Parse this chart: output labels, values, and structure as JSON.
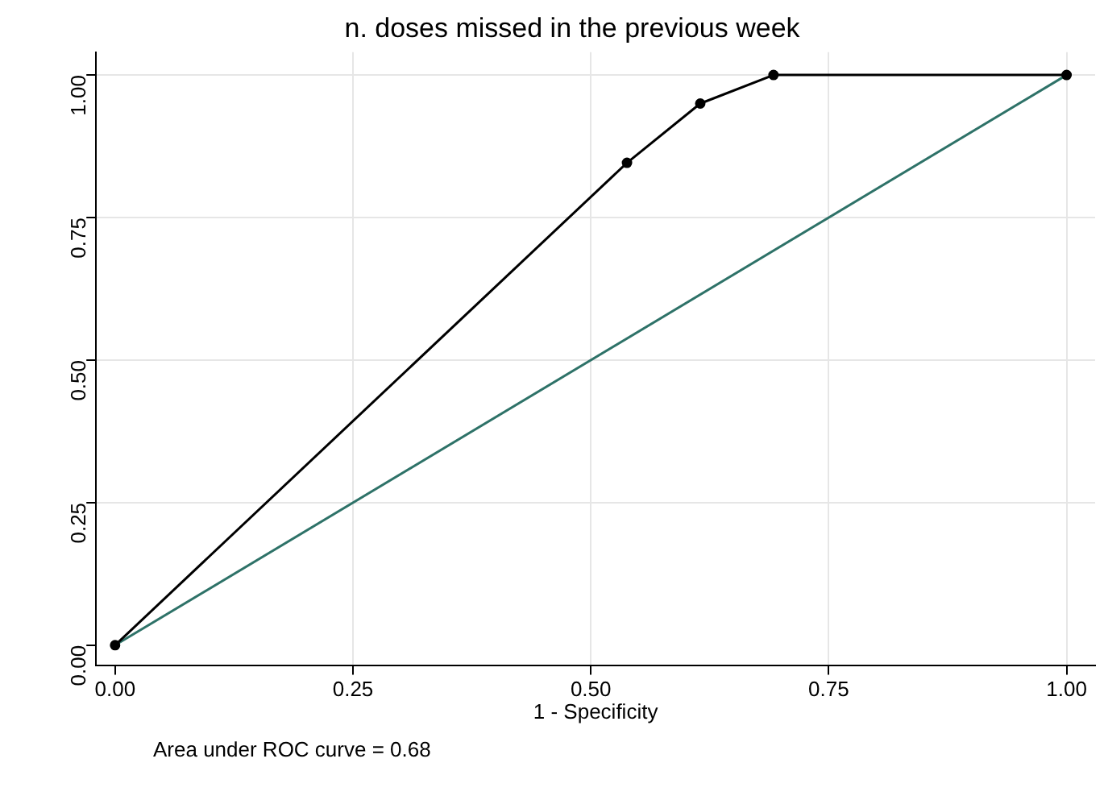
{
  "chart_data": {
    "type": "line",
    "title": "n. doses missed in the previous week",
    "xlabel": "1 - Specificity",
    "series": [
      {
        "color": "#000000",
        "marker": "circle",
        "x": [
          0,
          0.538,
          0.615,
          0.692,
          1
        ],
        "values": [
          0,
          0.846,
          0.95,
          1,
          1
        ]
      },
      {
        "color": "#2e7268",
        "marker": "none",
        "x": [
          0,
          1
        ],
        "values": [
          0,
          1
        ]
      }
    ],
    "xlim": [
      -0.02,
      1.03
    ],
    "ylim": [
      -0.035,
      1.04
    ],
    "xticks": [
      {
        "value": 0,
        "label": "0.00"
      },
      {
        "value": 0.25,
        "label": "0.25"
      },
      {
        "value": 0.5,
        "label": "0.50"
      },
      {
        "value": 0.75,
        "label": "0.75"
      },
      {
        "value": 1,
        "label": "1.00"
      }
    ],
    "yticks": [
      {
        "value": 0,
        "label": "0.00"
      },
      {
        "value": 0.25,
        "label": "0.25"
      },
      {
        "value": 0.5,
        "label": "0.50"
      },
      {
        "value": 0.75,
        "label": "0.75"
      },
      {
        "value": 1,
        "label": "1.00"
      }
    ],
    "grid": true,
    "legend": false,
    "annotations": [
      "Area under ROC curve = 0.68"
    ]
  }
}
